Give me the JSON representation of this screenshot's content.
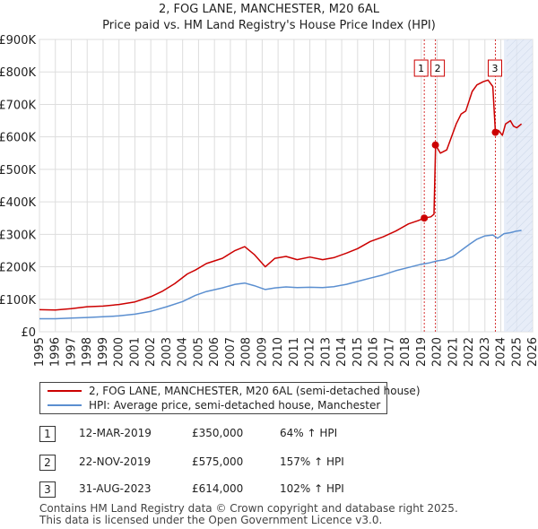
{
  "chart_data": {
    "type": "line",
    "title": "2, FOG LANE, MANCHESTER, M20 6AL",
    "subtitle": "Price paid vs. HM Land Registry's House Price Index (HPI)",
    "xlabel": "",
    "ylabel": "",
    "xlim": [
      1995,
      2026
    ],
    "ylim": [
      0,
      900000
    ],
    "grid": true,
    "y_ticks": [
      0,
      100000,
      200000,
      300000,
      400000,
      500000,
      600000,
      700000,
      800000,
      900000
    ],
    "y_tick_labels": [
      "£0",
      "£100K",
      "£200K",
      "£300K",
      "£400K",
      "£500K",
      "£600K",
      "£700K",
      "£800K",
      "£900K"
    ],
    "x_ticks": [
      1995,
      1996,
      1997,
      1998,
      1999,
      2000,
      2001,
      2002,
      2003,
      2004,
      2005,
      2006,
      2007,
      2008,
      2009,
      2010,
      2011,
      2012,
      2013,
      2014,
      2015,
      2016,
      2017,
      2018,
      2019,
      2020,
      2021,
      2022,
      2023,
      2024,
      2025,
      2026
    ],
    "x_tick_labels": [
      "1995",
      "1996",
      "1997",
      "1998",
      "1999",
      "2000",
      "2001",
      "2002",
      "2003",
      "2004",
      "2005",
      "2006",
      "2007",
      "2008",
      "2009",
      "2010",
      "2011",
      "2012",
      "2013",
      "2014",
      "2015",
      "2016",
      "2017",
      "2018",
      "2019",
      "2020",
      "2021",
      "2022",
      "2023",
      "2024",
      "2025",
      "2026"
    ],
    "forecast_region": [
      2024.2,
      2026
    ],
    "series": [
      {
        "name": "2, FOG LANE, MANCHESTER, M20 6AL (semi-detached house)",
        "color": "#cc0000",
        "x": [
          1995,
          1996,
          1997,
          1998,
          1999,
          2000,
          2001,
          2002,
          2002.7,
          2003.5,
          2004.3,
          2004.8,
          2005.5,
          2006.5,
          2007.3,
          2007.9,
          2008.5,
          2009.2,
          2009.8,
          2010.5,
          2011.2,
          2012.0,
          2012.8,
          2013.5,
          2014.3,
          2015.0,
          2015.8,
          2016.6,
          2017.4,
          2018.2,
          2018.8,
          2019.2,
          2019.6,
          2019.8,
          2019.9,
          2020.2,
          2020.6,
          2020.9,
          2021.2,
          2021.5,
          2021.8,
          2022.2,
          2022.5,
          2022.9,
          2023.2,
          2023.5,
          2023.66,
          2023.85,
          2024.1,
          2024.3,
          2024.6,
          2024.8,
          2025.0,
          2025.3
        ],
        "y": [
          68000,
          67000,
          71000,
          77000,
          79000,
          84000,
          92000,
          108000,
          124000,
          148000,
          178000,
          190000,
          210000,
          226000,
          250000,
          262000,
          238000,
          200000,
          226000,
          232000,
          222000,
          230000,
          222000,
          228000,
          242000,
          256000,
          278000,
          292000,
          310000,
          332000,
          342000,
          350000,
          354000,
          362000,
          575000,
          550000,
          560000,
          600000,
          640000,
          670000,
          680000,
          740000,
          760000,
          770000,
          775000,
          755000,
          614000,
          620000,
          605000,
          640000,
          650000,
          633000,
          628000,
          640000
        ]
      },
      {
        "name": "HPI: Average price, semi-detached house, Manchester",
        "color": "#5b8fd0",
        "x": [
          1995,
          1996,
          1997,
          1998,
          1999,
          2000,
          2001,
          2002,
          2003,
          2004,
          2004.8,
          2005.5,
          2006.5,
          2007.3,
          2007.9,
          2008.5,
          2009.2,
          2009.8,
          2010.5,
          2011.2,
          2012.0,
          2012.8,
          2013.5,
          2014.3,
          2015.0,
          2015.8,
          2016.6,
          2017.4,
          2018.2,
          2019.0,
          2019.5,
          2020.0,
          2020.5,
          2021.0,
          2021.5,
          2022.0,
          2022.5,
          2023.0,
          2023.5,
          2023.8,
          2024.2,
          2024.6,
          2025.0,
          2025.3
        ],
        "y": [
          40000,
          40000,
          42000,
          44000,
          46000,
          49000,
          54000,
          63000,
          77000,
          93000,
          112000,
          124000,
          135000,
          146000,
          150000,
          142000,
          130000,
          135000,
          138000,
          136000,
          137000,
          136000,
          139000,
          146000,
          155000,
          165000,
          175000,
          188000,
          198000,
          208000,
          212000,
          218000,
          222000,
          232000,
          250000,
          268000,
          285000,
          295000,
          298000,
          288000,
          302000,
          305000,
          310000,
          312000
        ]
      }
    ],
    "sales": [
      {
        "id": "1",
        "date": "12-MAR-2019",
        "price": "£350,000",
        "hpi": "64% ↑ HPI",
        "x": 2019.19,
        "y": 350000
      },
      {
        "id": "2",
        "date": "22-NOV-2019",
        "price": "£575,000",
        "hpi": "157% ↑ HPI",
        "x": 2019.89,
        "y": 575000
      },
      {
        "id": "3",
        "date": "31-AUG-2023",
        "price": "£614,000",
        "hpi": "102% ↑ HPI",
        "x": 2023.66,
        "y": 614000
      }
    ],
    "label_color": "#cc0000",
    "highlight_color": "#dde6f5"
  },
  "legend": {
    "property_label": "2, FOG LANE, MANCHESTER, M20 6AL (semi-detached house)",
    "hpi_label": "HPI: Average price, semi-detached house, Manchester"
  },
  "footer": {
    "line1": "Contains HM Land Registry data © Crown copyright and database right 2025.",
    "line2": "This data is licensed under the Open Government Licence v3.0."
  }
}
